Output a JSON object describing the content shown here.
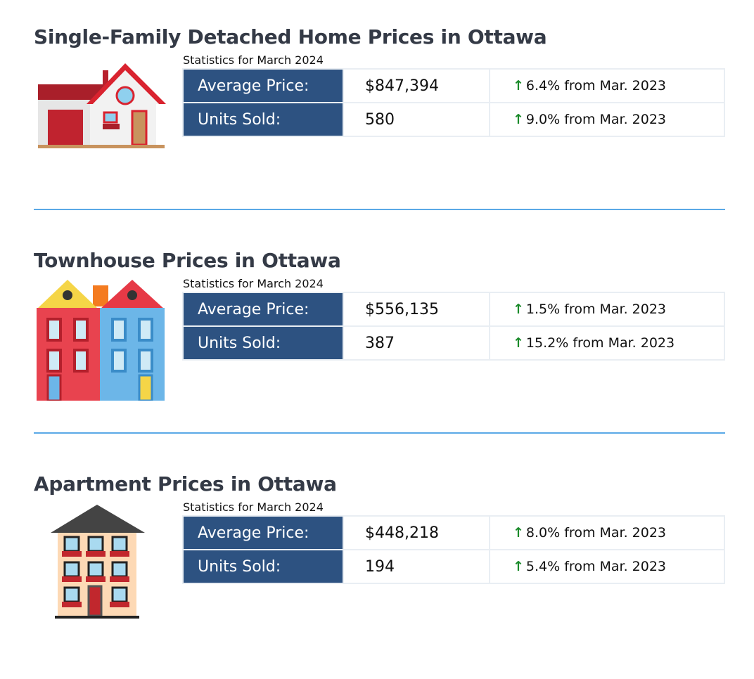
{
  "sections": [
    {
      "title": "Single-Family Detached Home Prices in Ottawa",
      "stats_label": "Statistics for March 2024",
      "rows": [
        {
          "label": "Average Price:",
          "value": "$847,394",
          "change": "6.4% from Mar. 2023"
        },
        {
          "label": "Units Sold:",
          "value": "580",
          "change": "9.0% from Mar. 2023"
        }
      ]
    },
    {
      "title": "Townhouse Prices in Ottawa",
      "stats_label": "Statistics for March 2024",
      "rows": [
        {
          "label": "Average Price:",
          "value": "$556,135",
          "change": "1.5% from Mar. 2023"
        },
        {
          "label": "Units Sold:",
          "value": "387",
          "change": "15.2% from Mar. 2023"
        }
      ]
    },
    {
      "title": "Apartment Prices in Ottawa",
      "stats_label": "Statistics for March 2024",
      "rows": [
        {
          "label": "Average Price:",
          "value": "$448,218",
          "change": "8.0% from Mar. 2023"
        },
        {
          "label": "Units Sold:",
          "value": "194",
          "change": "5.4% from Mar. 2023"
        }
      ]
    }
  ],
  "colors": {
    "header_cell": "#2d5281",
    "up_arrow": "#1a8a2a",
    "divider": "#5aa9e6"
  }
}
